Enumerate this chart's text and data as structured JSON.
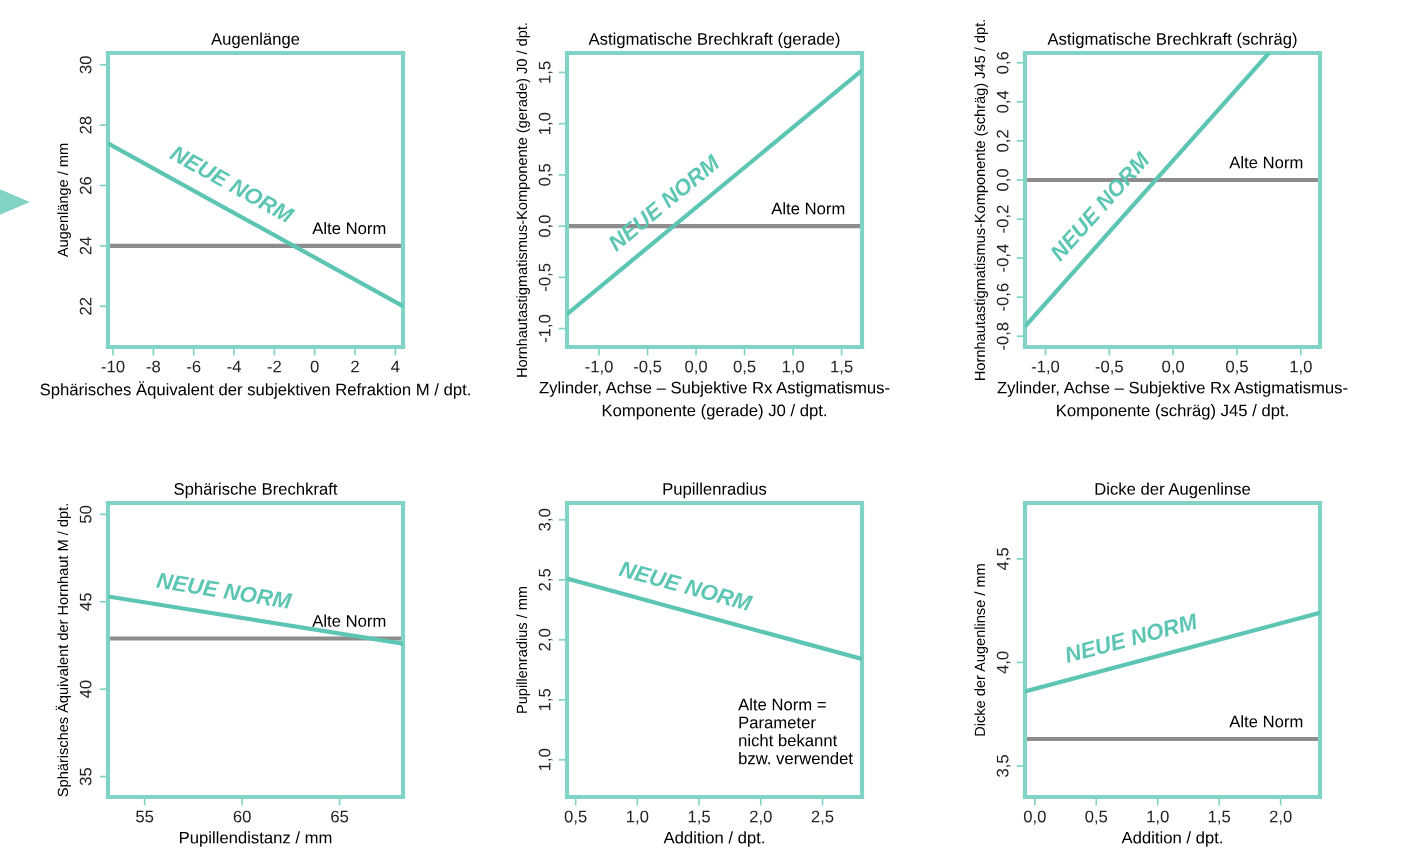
{
  "chart_data": [
    {
      "type": "line",
      "title": "Augenlänge",
      "xlabel": "Sphärisches Äquivalent der subjektiven Refraktion M / dpt.",
      "ylabel": "Augenlänge / mm",
      "xlim": [
        -10.25,
        4.38
      ],
      "ylim": [
        20.65,
        30.39
      ],
      "xticks": [
        -10,
        -8,
        -6,
        -4,
        -2,
        0,
        2,
        4
      ],
      "yticks": [
        22,
        24,
        26,
        28,
        30
      ],
      "grid": false,
      "series": [
        {
          "name": "NEUE NORM",
          "color": "#5cc5b3",
          "x": [
            -10.25,
            4.38
          ],
          "values": [
            27.4,
            22.0
          ]
        }
      ],
      "ref_lines": [
        {
          "axis": "y",
          "value": 24,
          "label": "Alte Norm",
          "color": "#8c8c8c"
        }
      ]
    },
    {
      "type": "line",
      "title": "Astigmatische Brechkraft (gerade)",
      "xlabel": "Zylinder, Achse – Subjektive Rx Astigmatismus-\nKomponente (gerade) J0 / dpt.",
      "ylabel": "Hornhautastigmatismus-Komponente (gerade) J0 / dpt.",
      "xlim": [
        -1.33,
        1.71
      ],
      "ylim": [
        -1.18,
        1.69
      ],
      "grid": false,
      "xticks": [
        {
          "value": -1.0,
          "label": "-1,0"
        },
        {
          "value": -0.5,
          "label": "-0,5"
        },
        {
          "value": 0.0,
          "label": "0,0"
        },
        {
          "value": 0.5,
          "label": "0,5"
        },
        {
          "value": 1.0,
          "label": "1,0"
        },
        {
          "value": 1.5,
          "label": "1,5"
        }
      ],
      "yticks": [
        {
          "value": -1.0,
          "label": "-1,0"
        },
        {
          "value": -0.5,
          "label": "-0,5"
        },
        {
          "value": 0.0,
          "label": "0,0"
        },
        {
          "value": 0.5,
          "label": "0,5"
        },
        {
          "value": 1.0,
          "label": "1,0"
        },
        {
          "value": 1.5,
          "label": "1,5"
        }
      ],
      "series": [
        {
          "name": "NEUE NORM",
          "color": "#5cc5b3",
          "x": [
            -1.33,
            1.71
          ],
          "values": [
            -0.86,
            1.52
          ]
        }
      ],
      "ref_lines": [
        {
          "axis": "y",
          "value": 0,
          "label": "Alte Norm",
          "color": "#8c8c8c"
        }
      ]
    },
    {
      "type": "line",
      "title": "Astigmatische Brechkraft (schräg)",
      "xlabel": "Zylinder, Achse – Subjektive Rx Astigmatismus-\nKomponente (schräg) J45 / dpt.",
      "ylabel": "Hornhautastigmatismus-Komponente (schräg) J45 / dpt.",
      "xlim": [
        -1.16,
        1.15
      ],
      "ylim": [
        -0.855,
        0.65
      ],
      "grid": false,
      "xticks": [
        {
          "value": -1.0,
          "label": "-1,0"
        },
        {
          "value": -0.5,
          "label": "-0,5"
        },
        {
          "value": 0.0,
          "label": "0,0"
        },
        {
          "value": 0.5,
          "label": "0,5"
        },
        {
          "value": 1.0,
          "label": "1,0"
        }
      ],
      "yticks": [
        {
          "value": -0.8,
          "label": "-0,8"
        },
        {
          "value": -0.6,
          "label": "-0,6"
        },
        {
          "value": -0.4,
          "label": "-0,4"
        },
        {
          "value": -0.2,
          "label": "-0,2"
        },
        {
          "value": 0.0,
          "label": "0,0"
        },
        {
          "value": 0.2,
          "label": "0,2"
        },
        {
          "value": 0.4,
          "label": "0,4"
        },
        {
          "value": 0.6,
          "label": "0,6"
        }
      ],
      "series": [
        {
          "name": "NEUE NORM",
          "color": "#5cc5b3",
          "x": [
            -1.16,
            0.75
          ],
          "values": [
            -0.75,
            0.65
          ]
        }
      ],
      "ref_lines": [
        {
          "axis": "y",
          "value": 0,
          "label": "Alte Norm",
          "color": "#8c8c8c"
        }
      ]
    },
    {
      "type": "line",
      "title": "Sphärische Brechkraft",
      "xlabel": "Pupillendistanz / mm",
      "ylabel": "Sphärisches Äquivalent der Hornhaut M / dpt.",
      "xlim": [
        53.12,
        68.25
      ],
      "ylim": [
        33.83,
        50.65
      ],
      "xticks": [
        55,
        60,
        65
      ],
      "yticks": [
        35,
        40,
        45,
        50
      ],
      "grid": false,
      "series": [
        {
          "name": "NEUE NORM",
          "color": "#5cc5b3",
          "x": [
            53.12,
            68.25
          ],
          "values": [
            45.3,
            42.6
          ]
        }
      ],
      "ref_lines": [
        {
          "axis": "y",
          "value": 42.9,
          "label": "Alte Norm",
          "color": "#8c8c8c"
        }
      ]
    },
    {
      "type": "line",
      "title": "Pupillenradius",
      "xlabel": "Addition / dpt.",
      "ylabel": "Pupillenradius / mm",
      "xlim": [
        0.43,
        2.82
      ],
      "ylim": [
        0.69,
        3.14
      ],
      "grid": false,
      "xticks": [
        {
          "value": 0.5,
          "label": "0,5"
        },
        {
          "value": 1.0,
          "label": "1,0"
        },
        {
          "value": 1.5,
          "label": "1,5"
        },
        {
          "value": 2.0,
          "label": "2,0"
        },
        {
          "value": 2.5,
          "label": "2,5"
        }
      ],
      "yticks": [
        {
          "value": 1.0,
          "label": "1,0"
        },
        {
          "value": 1.5,
          "label": "1,5"
        },
        {
          "value": 2.0,
          "label": "2,0"
        },
        {
          "value": 2.5,
          "label": "2,5"
        },
        {
          "value": 3.0,
          "label": "3,0"
        }
      ],
      "series": [
        {
          "name": "NEUE NORM",
          "color": "#5cc5b3",
          "x": [
            0.43,
            2.82
          ],
          "values": [
            2.51,
            1.84
          ]
        }
      ],
      "annotations": [
        "Alte Norm =\nParameter\nnicht bekannt\nbzw. verwendet"
      ]
    },
    {
      "type": "line",
      "title": "Dicke der Augenlinse",
      "xlabel": "Addition / dpt.",
      "ylabel": "Dicke der Augenlinse / mm",
      "xlim": [
        -0.08,
        2.32
      ],
      "ylim": [
        3.35,
        4.77
      ],
      "grid": false,
      "xticks": [
        {
          "value": 0.0,
          "label": "0,0"
        },
        {
          "value": 0.5,
          "label": "0,5"
        },
        {
          "value": 1.0,
          "label": "1,0"
        },
        {
          "value": 1.5,
          "label": "1,5"
        },
        {
          "value": 2.0,
          "label": "2,0"
        }
      ],
      "yticks": [
        {
          "value": 3.5,
          "label": "3,5"
        },
        {
          "value": 4.0,
          "label": "4,0"
        },
        {
          "value": 4.5,
          "label": "4,5"
        }
      ],
      "series": [
        {
          "name": "NEUE NORM",
          "color": "#5cc5b3",
          "x": [
            -0.08,
            2.32
          ],
          "values": [
            3.86,
            4.24
          ]
        }
      ],
      "ref_lines": [
        {
          "axis": "y",
          "value": 3.63,
          "label": "Alte Norm",
          "color": "#8c8c8c"
        }
      ]
    }
  ]
}
